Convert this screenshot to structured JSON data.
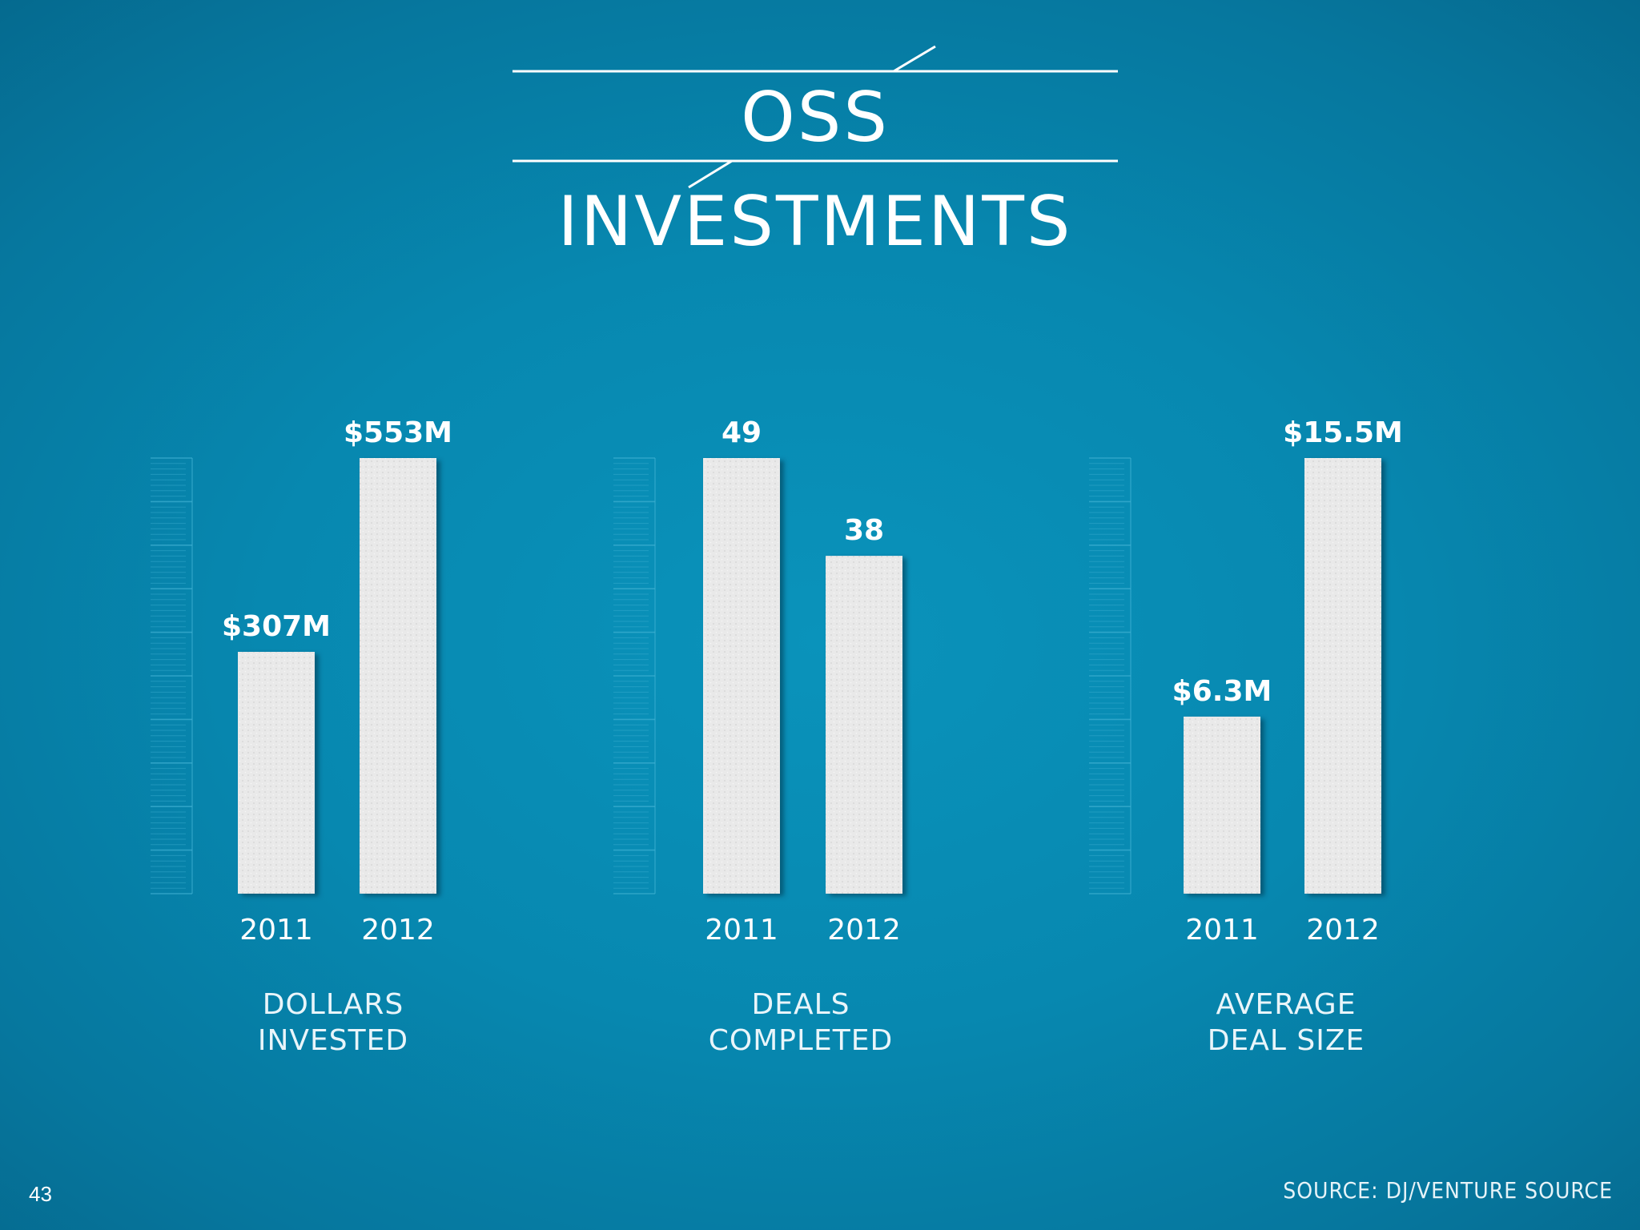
{
  "page": {
    "title": "OSS INVESTMENTS",
    "source": "SOURCE: DJ/VENTURE SOURCE",
    "page_number": "43"
  },
  "colors": {
    "background": "#0788b0",
    "bar": "#e8e8e8",
    "text": "#ffffff"
  },
  "chart_data": [
    {
      "type": "bar",
      "title": "DOLLARS INVESTED",
      "title_lines": [
        "DOLLARS",
        "INVESTED"
      ],
      "categories": [
        "2011",
        "2012"
      ],
      "values": [
        307,
        553
      ],
      "value_labels": [
        "$307M",
        "$553M"
      ],
      "units": "$M",
      "ylim": [
        0,
        553
      ]
    },
    {
      "type": "bar",
      "title": "DEALS COMPLETED",
      "title_lines": [
        "DEALS",
        "COMPLETED"
      ],
      "categories": [
        "2011",
        "2012"
      ],
      "values": [
        49,
        38
      ],
      "value_labels": [
        "49",
        "38"
      ],
      "ylim": [
        0,
        49
      ]
    },
    {
      "type": "bar",
      "title": "AVERAGE DEAL SIZE",
      "title_lines": [
        "AVERAGE",
        "DEAL SIZE"
      ],
      "categories": [
        "2011",
        "2012"
      ],
      "values": [
        6.3,
        15.5
      ],
      "value_labels": [
        "$6.3M",
        "$15.5M"
      ],
      "units": "$M",
      "ylim": [
        0,
        15.5
      ]
    }
  ]
}
